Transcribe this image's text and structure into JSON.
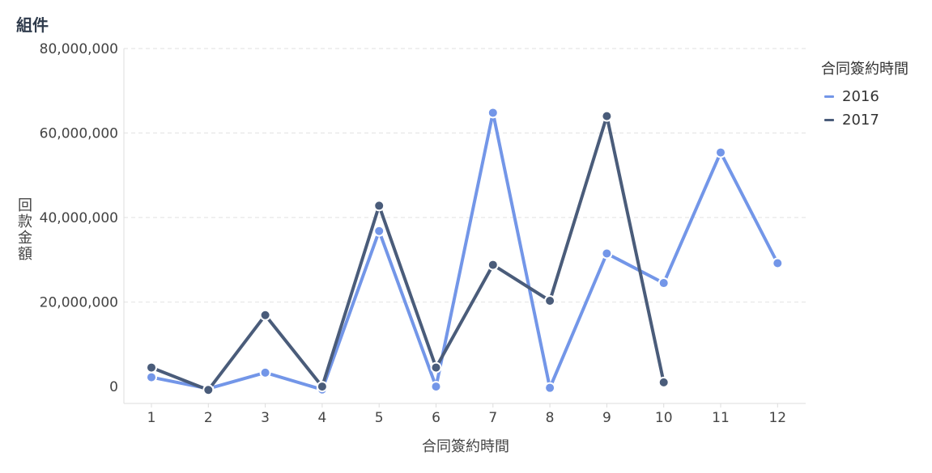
{
  "title": "組件",
  "chart_data": {
    "type": "line",
    "xlabel": "合同簽約時間",
    "ylabel": "回款金額",
    "categories": [
      "1",
      "2",
      "3",
      "4",
      "5",
      "6",
      "7",
      "8",
      "9",
      "10",
      "11",
      "12"
    ],
    "ylim": [
      -4000000,
      80000000
    ],
    "yticks": [
      0,
      20000000,
      40000000,
      60000000,
      80000000
    ],
    "ytick_labels": [
      "0",
      "20,000,000",
      "40,000,000",
      "60,000,000",
      "80,000,000"
    ],
    "grid": true,
    "legend_title": "合同簽約時間",
    "legend_position": "top-right",
    "series": [
      {
        "name": "2016",
        "color": "#7396e8",
        "values": [
          2200000,
          -500000,
          3300000,
          -700000,
          36800000,
          0,
          64800000,
          -300000,
          31500000,
          24500000,
          55400000,
          29200000
        ]
      },
      {
        "name": "2017",
        "color": "#4a5c7a",
        "values": [
          4500000,
          -800000,
          16900000,
          0,
          42800000,
          4500000,
          28800000,
          20300000,
          64000000,
          1000000,
          null,
          null
        ]
      }
    ]
  }
}
